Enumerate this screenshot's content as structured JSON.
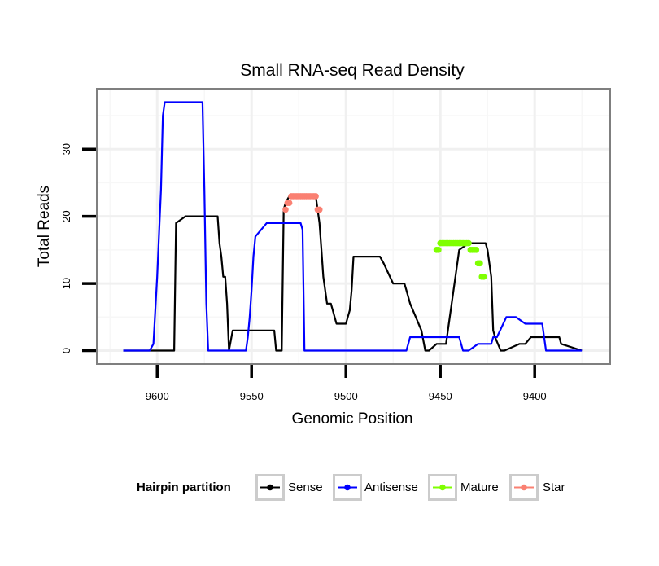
{
  "chart_data": {
    "type": "line",
    "title": "Small RNA-seq Read Density",
    "xlabel": "Genomic Position",
    "ylabel": "Total Reads",
    "xlim": [
      9632,
      9360
    ],
    "x_reversed": true,
    "ylim": [
      -2,
      39
    ],
    "x_ticks": [
      9600,
      9550,
      9500,
      9450,
      9400
    ],
    "x_tick_labels": [
      "9600",
      "9550",
      "9500",
      "9450",
      "9400"
    ],
    "y_ticks": [
      0,
      10,
      20,
      30
    ],
    "y_tick_labels": [
      "0",
      "10",
      "20",
      "30"
    ],
    "grid": true,
    "legend": {
      "title": "Hairpin partition",
      "position": "bottom",
      "entries": [
        "Sense",
        "Antisense",
        "Mature",
        "Star"
      ]
    },
    "series": [
      {
        "name": "Sense",
        "color": "#000000",
        "style": "line",
        "x": [
          9618,
          9597,
          9593,
          9592,
          9591,
          9590,
          9585,
          9580,
          9570,
          9569,
          9568,
          9567,
          9566,
          9565,
          9564,
          9563,
          9562,
          9560,
          9557,
          9555,
          9550,
          9545,
          9540,
          9538,
          9537,
          9536,
          9535,
          9534,
          9533,
          9532,
          9530,
          9528,
          9525,
          9520,
          9516,
          9515,
          9514,
          9513,
          9512,
          9510,
          9508,
          9507,
          9506,
          9505,
          9504,
          9500,
          9498,
          9497,
          9496,
          9495,
          9490,
          9485,
          9482,
          9480,
          9475,
          9473,
          9472,
          9471,
          9470,
          9469,
          9468,
          9466,
          9460,
          9458,
          9457,
          9456,
          9452,
          9447,
          9440,
          9435,
          9430,
          9429,
          9428,
          9427,
          9426,
          9425,
          9424,
          9423,
          9422,
          9421,
          9418,
          9417,
          9416,
          9408,
          9405,
          9402,
          9400,
          9397,
          9391,
          9390,
          9388,
          9387,
          9386,
          9375
        ],
        "y": [
          0,
          0,
          0,
          0,
          0,
          19,
          20,
          20,
          20,
          20,
          20,
          16,
          14,
          11,
          11,
          7,
          0,
          3,
          3,
          3,
          3,
          3,
          3,
          3,
          0,
          0,
          0,
          0,
          21,
          22,
          23,
          23,
          23,
          23,
          23,
          21,
          19,
          15,
          11,
          7,
          7,
          6,
          5,
          4,
          4,
          4,
          6,
          9,
          14,
          14,
          14,
          14,
          14,
          13,
          10,
          10,
          10,
          10,
          10,
          10,
          9,
          7,
          3,
          0,
          0,
          0,
          1,
          1,
          15,
          16,
          16,
          16,
          16,
          16,
          16,
          15,
          13,
          11,
          3,
          2,
          0,
          0,
          0,
          1,
          1,
          2,
          2,
          2,
          2,
          2,
          2,
          2,
          1,
          0
        ]
      },
      {
        "name": "Antisense",
        "color": "#0000ff",
        "style": "line",
        "x": [
          9618,
          9604,
          9602,
          9600,
          9598,
          9597,
          9596,
          9592,
          9587,
          9580,
          9576,
          9575,
          9574,
          9573,
          9572,
          9570,
          9560,
          9555,
          9553,
          9552,
          9551,
          9550,
          9549,
          9548,
          9542,
          9530,
          9524,
          9523,
          9522,
          9520,
          9510,
          9500,
          9480,
          9470,
          9468,
          9467,
          9466,
          9460,
          9450,
          9447,
          9445,
          9442,
          9441,
          9440,
          9438,
          9435,
          9430,
          9427,
          9426,
          9425,
          9424,
          9423,
          9422,
          9420,
          9415,
          9413,
          9412,
          9410,
          9405,
          9400,
          9398,
          9397,
          9396,
          9394,
          9390,
          9387,
          9386,
          9385,
          9380,
          9375
        ],
        "y": [
          0,
          0,
          1,
          11,
          24,
          35,
          37,
          37,
          37,
          37,
          37,
          24,
          7,
          0,
          0,
          0,
          0,
          0,
          0,
          2,
          5,
          9,
          14,
          17,
          19,
          19,
          19,
          18,
          0,
          0,
          0,
          0,
          0,
          0,
          0,
          1,
          2,
          2,
          2,
          2,
          2,
          2,
          2,
          2,
          0,
          0,
          1,
          1,
          1,
          1,
          1,
          1,
          2,
          2,
          5,
          5,
          5,
          5,
          4,
          4,
          4,
          4,
          4,
          0,
          0,
          0,
          0,
          0,
          0,
          0
        ]
      },
      {
        "name": "Mature",
        "color": "#7fff00",
        "style": "points",
        "x": [
          9452,
          9451,
          9450,
          9449,
          9448,
          9447,
          9446,
          9445,
          9444,
          9443,
          9442,
          9441,
          9440,
          9439,
          9438,
          9437,
          9436,
          9435,
          9434,
          9433,
          9432,
          9431,
          9430,
          9429,
          9428,
          9427
        ],
        "y": [
          15,
          15,
          16,
          16,
          16,
          16,
          16,
          16,
          16,
          16,
          16,
          16,
          16,
          16,
          16,
          16,
          16,
          16,
          15,
          15,
          15,
          15,
          13,
          13,
          11,
          11
        ]
      },
      {
        "name": "Star",
        "color": "#fa8072",
        "style": "points",
        "x": [
          9532,
          9531,
          9530,
          9529,
          9528,
          9527,
          9526,
          9525,
          9524,
          9523,
          9522,
          9521,
          9520,
          9519,
          9518,
          9517,
          9516,
          9515,
          9514
        ],
        "y": [
          21,
          22,
          22,
          23,
          23,
          23,
          23,
          23,
          23,
          23,
          23,
          23,
          23,
          23,
          23,
          23,
          23,
          21,
          21
        ]
      }
    ]
  }
}
